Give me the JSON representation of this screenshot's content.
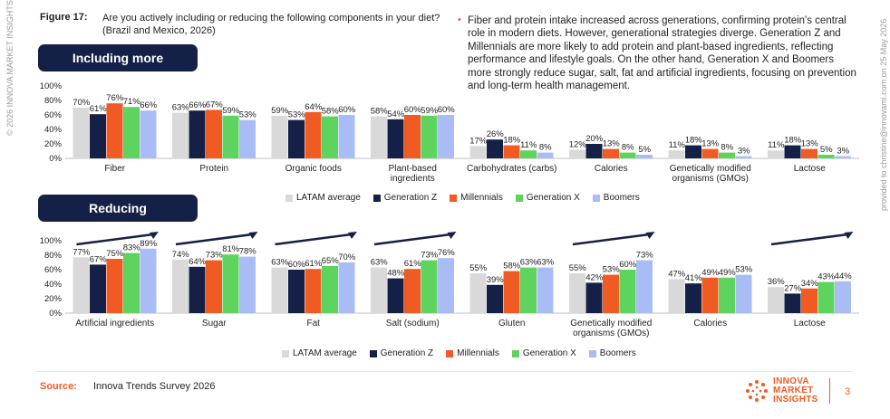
{
  "watermark": {
    "left": "© 2026 INNOVA MARKET INSIGHTS",
    "right": "provided to christine@innovami.com on 25 May 2026"
  },
  "figure": {
    "label": "Figure 17:",
    "question": "Are you actively including or reducing the following components in your diet? (Brazil and Mexico, 2026)"
  },
  "insight": "Fiber and protein intake increased across generations, confirming protein's central role in modern diets. However, generational strategies diverge. Generation Z and Millennials are more likely to add protein and plant-based ingredients, reflecting performance and lifestyle goals. On the other hand, Generation X and Boomers more strongly reduce sugar, salt, fat and artificial ingredients, focusing on prevention and long-term health management.",
  "sections": {
    "including": "Including more",
    "reducing": "Reducing"
  },
  "colors": {
    "LATAM average": "#d9d9d9",
    "Generation Z": "#142046",
    "Millennials": "#f05a23",
    "Generation X": "#5ed35e",
    "Boomers": "#a9bcf5",
    "arrow": "#142046"
  },
  "legend": [
    "LATAM average",
    "Generation Z",
    "Millennials",
    "Generation X",
    "Boomers"
  ],
  "chart_data": [
    {
      "type": "bar",
      "title": "Including more",
      "categories": [
        "Fiber",
        "Protein",
        "Organic foods",
        "Plant-based ingredients",
        "Carbohydrates (carbs)",
        "Calories",
        "Genetically modified organisms (GMOs)",
        "Lactose"
      ],
      "ylim": [
        0,
        100
      ],
      "yticks": [
        "0%",
        "20%",
        "40%",
        "60%",
        "80%",
        "100%"
      ],
      "series": [
        {
          "name": "LATAM average",
          "values": [
            70,
            63,
            59,
            58,
            17,
            12,
            11,
            11
          ]
        },
        {
          "name": "Generation Z",
          "values": [
            61,
            66,
            53,
            54,
            26,
            20,
            18,
            18
          ]
        },
        {
          "name": "Millennials",
          "values": [
            76,
            67,
            64,
            60,
            18,
            13,
            13,
            13
          ]
        },
        {
          "name": "Generation X",
          "values": [
            71,
            59,
            58,
            59,
            11,
            8,
            8,
            5
          ]
        },
        {
          "name": "Boomers",
          "values": [
            66,
            53,
            60,
            60,
            8,
            5,
            3,
            3
          ]
        }
      ],
      "legend_position": "bottom"
    },
    {
      "type": "bar",
      "title": "Reducing",
      "categories": [
        "Artificial ingredients",
        "Sugar",
        "Fat",
        "Salt (sodium)",
        "Gluten",
        "Genetically modified organisms (GMOs)",
        "Calories",
        "Lactose"
      ],
      "ylim": [
        0,
        100
      ],
      "yticks": [
        "0%",
        "20%",
        "40%",
        "60%",
        "80%",
        "100%"
      ],
      "series": [
        {
          "name": "LATAM average",
          "values": [
            77,
            74,
            63,
            63,
            55,
            55,
            47,
            36
          ]
        },
        {
          "name": "Generation Z",
          "values": [
            67,
            64,
            60,
            48,
            39,
            42,
            41,
            27
          ]
        },
        {
          "name": "Millennials",
          "values": [
            75,
            73,
            61,
            61,
            58,
            53,
            49,
            34
          ]
        },
        {
          "name": "Generation X",
          "values": [
            83,
            81,
            65,
            73,
            63,
            60,
            49,
            43
          ]
        },
        {
          "name": "Boomers",
          "values": [
            89,
            78,
            70,
            76,
            63,
            73,
            53,
            44
          ]
        }
      ],
      "trend_arrows": [
        "Artificial ingredients",
        "Sugar",
        "Fat",
        "Salt (sodium)",
        "Genetically modified organisms (GMOs)",
        "Lactose"
      ],
      "legend_position": "bottom"
    }
  ],
  "footer": {
    "source_label": "Source:",
    "source_text": "Innova Trends Survey 2026",
    "logo_text": [
      "INNOVA",
      "MARKET",
      "INSIGHTS"
    ],
    "page_number": "3"
  }
}
